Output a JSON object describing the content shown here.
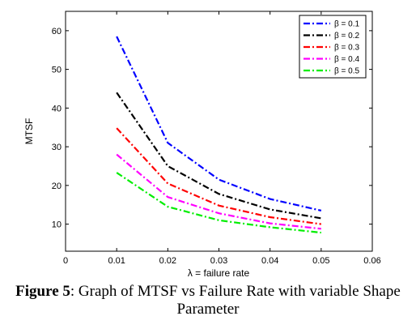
{
  "chart_data": {
    "type": "line",
    "xlabel": "λ = failure rate",
    "ylabel": "MTSF",
    "xlim": [
      0,
      0.06
    ],
    "ylim": [
      3,
      65
    ],
    "xticks": [
      0,
      0.01,
      0.02,
      0.03,
      0.04,
      0.05,
      0.06
    ],
    "xtick_labels": [
      "0",
      "0.01",
      "0.02",
      "0.03",
      "0.04",
      "0.05",
      "0.06"
    ],
    "yticks": [
      10,
      20,
      30,
      40,
      50,
      60
    ],
    "grid": false,
    "legend_position": "top-right",
    "x": [
      0.01,
      0.02,
      0.03,
      0.04,
      0.05
    ],
    "series": [
      {
        "name": "β = 0.1",
        "color": "#0000ff",
        "values": [
          58.5,
          31.0,
          21.5,
          16.5,
          13.5
        ]
      },
      {
        "name": "β = 0.2",
        "color": "#000000",
        "values": [
          44.0,
          25.0,
          17.8,
          13.8,
          11.5
        ]
      },
      {
        "name": "β = 0.3",
        "color": "#ff0000",
        "values": [
          34.8,
          20.5,
          14.8,
          11.8,
          10.0
        ]
      },
      {
        "name": "β = 0.4",
        "color": "#ff00ff",
        "values": [
          28.0,
          17.0,
          12.8,
          10.2,
          8.8
        ]
      },
      {
        "name": "β = 0.5",
        "color": "#00ee00",
        "values": [
          23.3,
          14.5,
          11.0,
          9.2,
          7.8
        ]
      }
    ]
  },
  "caption": {
    "label": "Figure 5",
    "text": ": Graph of MTSF vs Failure Rate with variable Shape Parameter"
  }
}
